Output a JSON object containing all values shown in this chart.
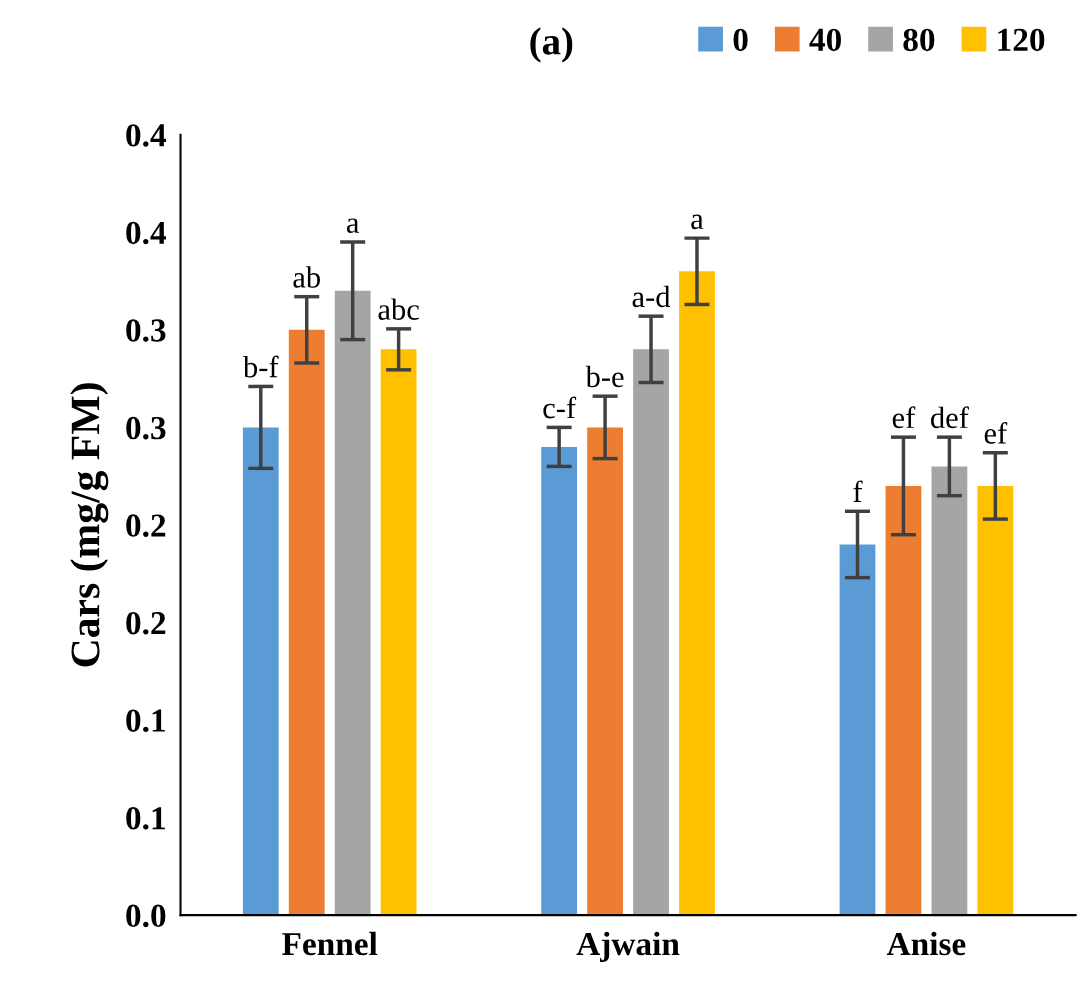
{
  "chart_data": {
    "type": "bar",
    "title": "(a)",
    "ylabel": "Cars (mg/g FM)",
    "categories": [
      "Fennel",
      "Ajwain",
      "Anise"
    ],
    "series": [
      {
        "name": "0",
        "color": "#5b9bd5",
        "values": [
          0.25,
          0.24,
          0.19
        ],
        "errors": [
          0.021,
          0.01,
          0.017
        ]
      },
      {
        "name": "40",
        "color": "#ed7d31",
        "values": [
          0.3,
          0.25,
          0.22
        ],
        "errors": [
          0.017,
          0.016,
          0.025
        ]
      },
      {
        "name": "80",
        "color": "#a5a5a5",
        "values": [
          0.32,
          0.29,
          0.23
        ],
        "errors": [
          0.025,
          0.017,
          0.015
        ]
      },
      {
        "name": "120",
        "color": "#ffc000",
        "values": [
          0.29,
          0.33,
          0.22
        ],
        "errors": [
          0.0105,
          0.017,
          0.017
        ]
      }
    ],
    "ylim": [
      0,
      0.4
    ],
    "yticks": [
      {
        "value": 0,
        "label": "0.0"
      },
      {
        "value": 0.05,
        "label": "0.1"
      },
      {
        "value": 0.1,
        "label": "0.1"
      },
      {
        "value": 0.15,
        "label": "0.2"
      },
      {
        "value": 0.2,
        "label": "0.2"
      },
      {
        "value": 0.25,
        "label": "0.3"
      },
      {
        "value": 0.3,
        "label": "0.3"
      },
      {
        "value": 0.35,
        "label": "0.4"
      },
      {
        "value": 0.4,
        "label": "0.4"
      }
    ],
    "annotations": [
      "b-f",
      "ab",
      "a",
      "abc",
      "c-f",
      "b-e",
      "a-d",
      "a",
      "f",
      "ef",
      "def",
      "ef"
    ],
    "grid": false,
    "legend": "top right"
  }
}
